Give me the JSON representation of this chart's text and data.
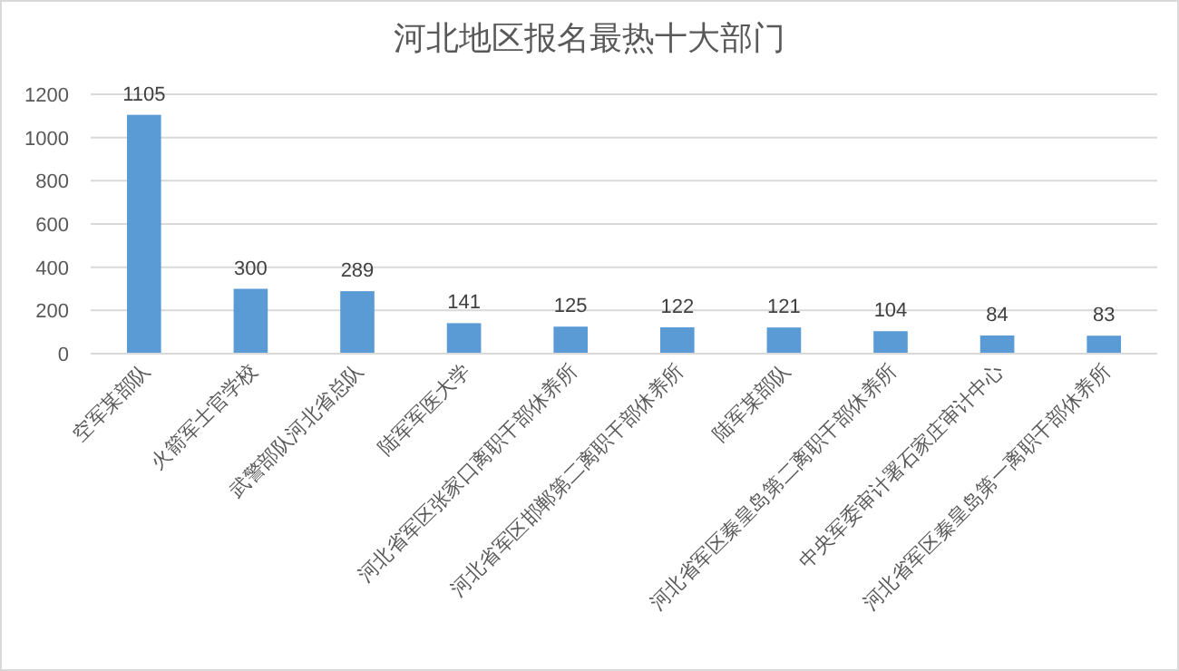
{
  "chart_data": {
    "type": "bar",
    "title": "河北地区报名最热十大部门",
    "categories": [
      "空军某部队",
      "火箭军士官学校",
      "武警部队河北省总队",
      "陆军军医大学",
      "河北省军区张家口离职干部休养所",
      "河北省军区邯郸第二离职干部休养所",
      "陆军某部队",
      "河北省军区秦皇岛第二离职干部休养所",
      "中央军委审计署石家庄审计中心",
      "河北省军区秦皇岛第一离职干部休养所"
    ],
    "values": [
      1105,
      300,
      289,
      141,
      125,
      122,
      121,
      104,
      84,
      83
    ],
    "color": "#5b9bd5",
    "ylim": [
      0,
      1200
    ],
    "yticks": [
      0,
      200,
      400,
      600,
      800,
      1000,
      1200
    ],
    "grid": "y",
    "data_labels": true
  }
}
